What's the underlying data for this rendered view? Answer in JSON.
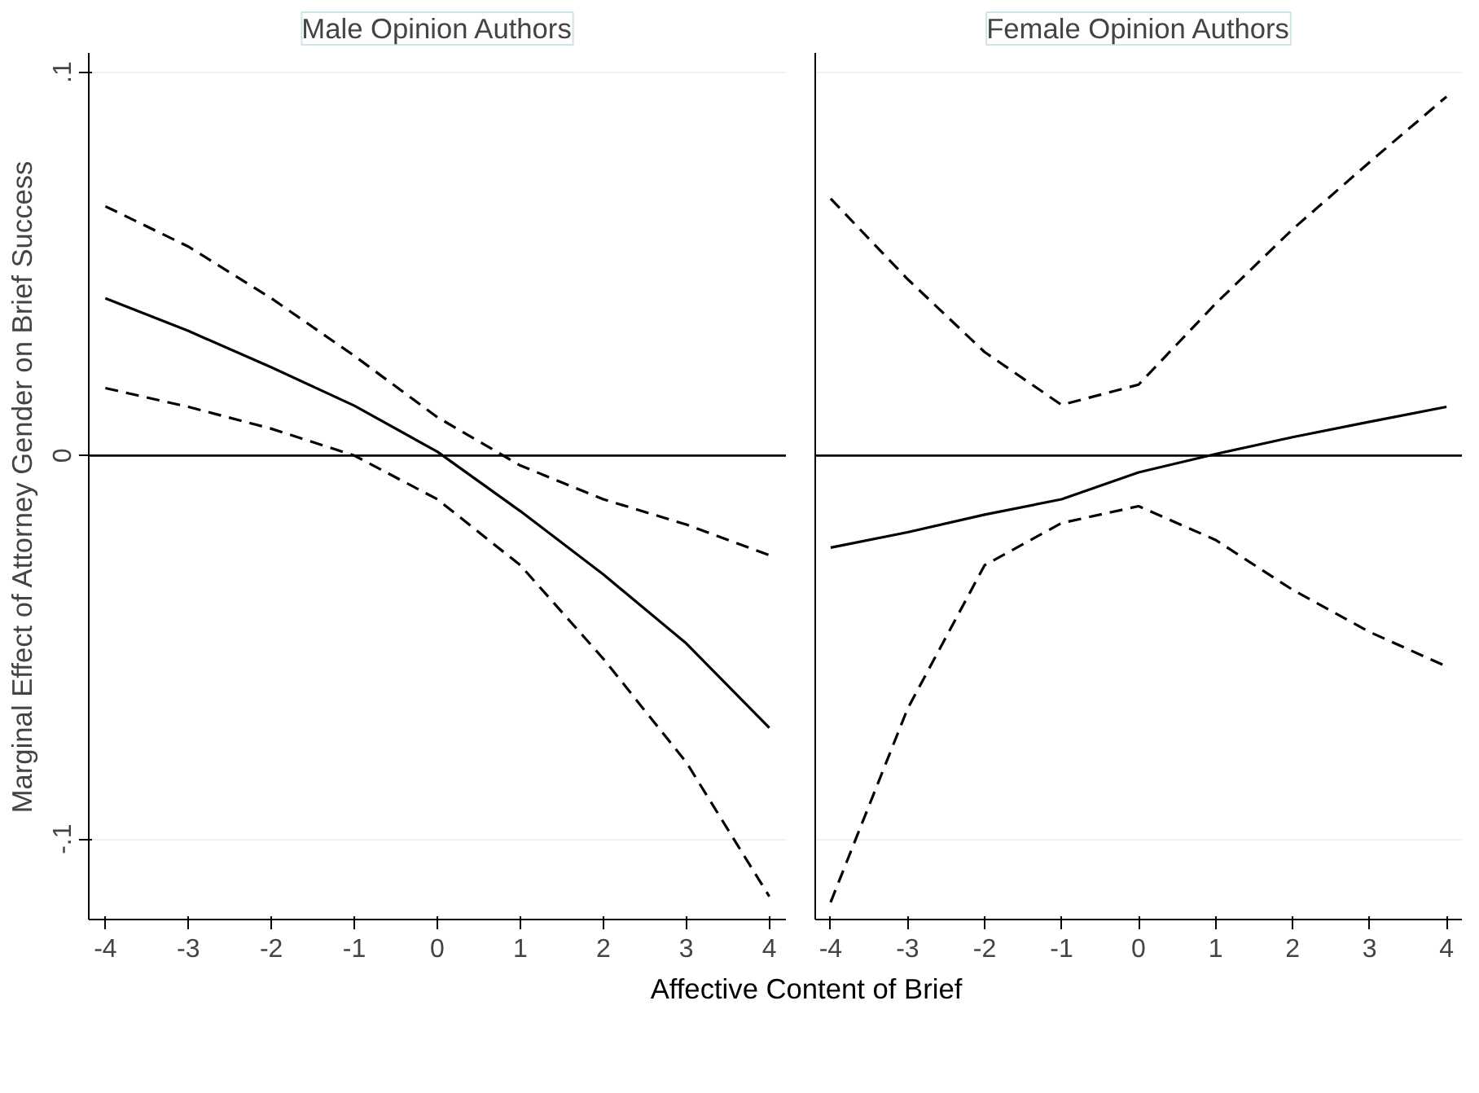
{
  "chart_data": [
    {
      "type": "line",
      "title": "Male Opinion Authors",
      "ylabel": "Marginal Effect of Attorney Gender on Brief Success",
      "xlabel": "Affective Content of Brief",
      "x": [
        -4,
        -3,
        -2,
        -1,
        0,
        1,
        2,
        3,
        4
      ],
      "xlim": [
        -4.2,
        4.2
      ],
      "xticks": [
        -4,
        -3,
        -2,
        -1,
        0,
        1,
        2,
        3,
        4
      ],
      "ylim": [
        -0.121,
        0.105
      ],
      "yticks": [
        {
          "value": -0.1,
          "label": "-.1"
        },
        0,
        {
          "value": 0.1,
          "label": ".1"
        }
      ],
      "grid": "y",
      "ref_lines": [
        {
          "axis": "y",
          "value": 0,
          "color": "#000000"
        }
      ],
      "series": [
        {
          "color": "#000000",
          "line_style": "solid",
          "values": [
            0.041,
            0.0325,
            0.023,
            0.013,
            0.001,
            -0.0145,
            -0.031,
            -0.049,
            -0.071
          ]
        },
        {
          "color": "#000000",
          "line_style": "dashed",
          "values": [
            0.065,
            0.0545,
            0.041,
            0.026,
            0.01,
            -0.0026,
            -0.0114,
            -0.018,
            -0.026
          ]
        },
        {
          "color": "#000000",
          "line_style": "dashed",
          "values": [
            0.0176,
            0.0127,
            0.007,
            0,
            -0.0114,
            -0.0286,
            -0.053,
            -0.08,
            -0.115
          ]
        }
      ]
    },
    {
      "type": "line",
      "title": "Female Opinion Authors",
      "x": [
        -4,
        -3,
        -2,
        -1,
        0,
        1,
        2,
        3,
        4
      ],
      "xlim": [
        -4.2,
        4.2
      ],
      "xticks": [
        -4,
        -3,
        -2,
        -1,
        0,
        1,
        2,
        3,
        4
      ],
      "ylim": [
        -0.121,
        0.105
      ],
      "yticks": [
        -0.1,
        0,
        0.1
      ],
      "tick_labels": "x",
      "grid": "y",
      "ref_lines": [
        {
          "axis": "y",
          "value": 0,
          "color": "#000000"
        }
      ],
      "series": [
        {
          "color": "#000000",
          "line_style": "solid",
          "values": [
            -0.024,
            -0.02,
            -0.0154,
            -0.0114,
            -0.0044,
            0.0004,
            0.0048,
            0.0088,
            0.0127
          ]
        },
        {
          "color": "#000000",
          "line_style": "dashed",
          "values": [
            0.067,
            0.046,
            0.027,
            0.0132,
            0.0185,
            0.0396,
            0.059,
            0.0765,
            0.0936
          ]
        },
        {
          "color": "#000000",
          "line_style": "dashed",
          "values": [
            -0.1165,
            -0.066,
            -0.0286,
            -0.0176,
            -0.0132,
            -0.022,
            -0.035,
            -0.046,
            -0.055
          ]
        }
      ]
    }
  ]
}
